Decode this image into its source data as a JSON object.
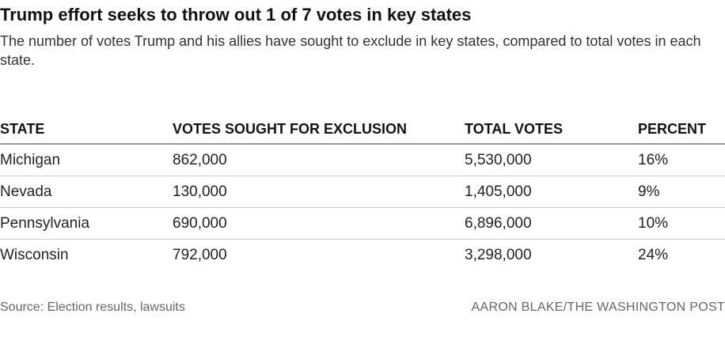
{
  "chart_data": {
    "type": "table",
    "title": "Trump effort seeks to throw out 1 of 7 votes in key states",
    "subtitle": "The number of votes Trump and his allies have sought to exclude in key states, compared to total votes in each state.",
    "columns": [
      "STATE",
      "VOTES SOUGHT FOR EXCLUSION",
      "TOTAL VOTES",
      "PERCENT"
    ],
    "rows": [
      [
        "Michigan",
        "862,000",
        "5,530,000",
        "16%"
      ],
      [
        "Nevada",
        "130,000",
        "1,405,000",
        "9%"
      ],
      [
        "Pennsylvania",
        "690,000",
        "6,896,000",
        "10%"
      ],
      [
        "Wisconsin",
        "792,000",
        "3,298,000",
        "24%"
      ]
    ],
    "source": "Source: Election results, lawsuits",
    "credit": "AARON BLAKE/THE WASHINGTON POST"
  }
}
